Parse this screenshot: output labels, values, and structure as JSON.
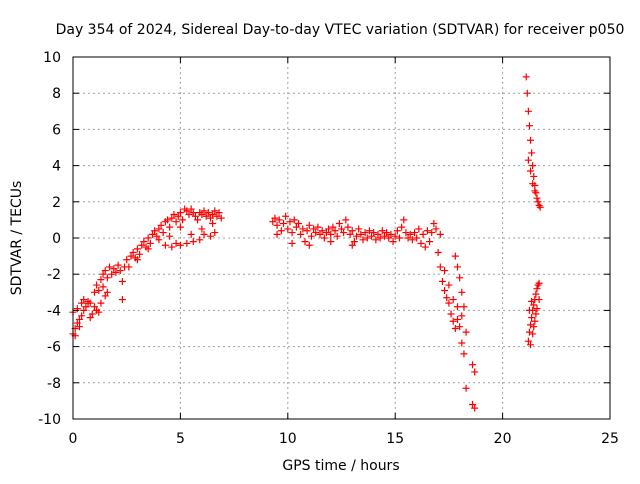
{
  "chart_data": {
    "type": "scatter",
    "title": "Day 354 of 2024, Sidereal Day-to-day VTEC variation (SDTVAR) for receiver p050",
    "xlabel": "GPS time / hours",
    "ylabel": "SDTVAR / TECUs",
    "xlim": [
      0,
      25
    ],
    "ylim": [
      -10,
      10
    ],
    "xticks": [
      "0",
      "5",
      "10",
      "15",
      "20",
      "25"
    ],
    "yticks": [
      "-10",
      "-8",
      "-6",
      "-4",
      "-2",
      "0",
      "2",
      "4",
      "6",
      "8",
      "10"
    ],
    "grid": true,
    "marker": "+",
    "color": "#ff0000",
    "series": [
      {
        "name": "p050",
        "points": [
          [
            0.0,
            -5.3
          ],
          [
            0.1,
            -5.0
          ],
          [
            0.2,
            -4.7
          ],
          [
            0.3,
            -4.5
          ],
          [
            0.4,
            -4.3
          ],
          [
            0.5,
            -4.0
          ],
          [
            0.6,
            -3.8
          ],
          [
            0.7,
            -3.6
          ],
          [
            0.0,
            -4.1
          ],
          [
            0.2,
            -3.9
          ],
          [
            0.4,
            -3.6
          ],
          [
            0.5,
            -3.4
          ],
          [
            0.7,
            -3.5
          ],
          [
            0.8,
            -3.6
          ],
          [
            0.1,
            -5.4
          ],
          [
            0.3,
            -4.9
          ],
          [
            0.8,
            -4.4
          ],
          [
            0.9,
            -4.2
          ],
          [
            1.0,
            -3.8
          ],
          [
            1.0,
            -3.0
          ],
          [
            1.1,
            -2.6
          ],
          [
            1.2,
            -2.9
          ],
          [
            1.3,
            -2.3
          ],
          [
            1.4,
            -2.0
          ],
          [
            1.5,
            -1.8
          ],
          [
            1.6,
            -2.2
          ],
          [
            1.7,
            -1.6
          ],
          [
            1.5,
            -3.2
          ],
          [
            1.3,
            -3.6
          ],
          [
            1.2,
            -4.1
          ],
          [
            1.1,
            -4.0
          ],
          [
            1.4,
            -2.7
          ],
          [
            1.6,
            -3.0
          ],
          [
            1.8,
            -2.0
          ],
          [
            1.9,
            -1.7
          ],
          [
            2.0,
            -1.9
          ],
          [
            2.1,
            -1.5
          ],
          [
            2.2,
            -1.8
          ],
          [
            2.3,
            -2.4
          ],
          [
            2.3,
            -3.4
          ],
          [
            2.4,
            -1.6
          ],
          [
            2.5,
            -1.2
          ],
          [
            2.6,
            -1.6
          ],
          [
            2.7,
            -1.0
          ],
          [
            2.8,
            -0.8
          ],
          [
            2.9,
            -1.1
          ],
          [
            3.0,
            -0.6
          ],
          [
            3.1,
            -0.9
          ],
          [
            3.2,
            -0.4
          ],
          [
            3.3,
            -0.2
          ],
          [
            3.4,
            -0.5
          ],
          [
            3.5,
            0.0
          ],
          [
            3.6,
            -0.3
          ],
          [
            3.7,
            0.2
          ],
          [
            3.8,
            0.4
          ],
          [
            3.9,
            0.1
          ],
          [
            4.0,
            0.5
          ],
          [
            4.1,
            0.7
          ],
          [
            4.2,
            0.3
          ],
          [
            4.3,
            0.9
          ],
          [
            4.4,
            1.0
          ],
          [
            4.5,
            0.6
          ],
          [
            4.6,
            1.1
          ],
          [
            4.7,
            1.3
          ],
          [
            4.8,
            0.9
          ],
          [
            4.9,
            1.2
          ],
          [
            5.0,
            1.4
          ],
          [
            5.1,
            1.0
          ],
          [
            5.2,
            1.6
          ],
          [
            5.3,
            1.5
          ],
          [
            5.4,
            1.3
          ],
          [
            5.5,
            1.6
          ],
          [
            5.6,
            1.4
          ],
          [
            5.7,
            1.2
          ],
          [
            5.8,
            1.0
          ],
          [
            5.9,
            1.4
          ],
          [
            6.0,
            1.3
          ],
          [
            6.1,
            1.5
          ],
          [
            6.2,
            1.2
          ],
          [
            6.3,
            1.4
          ],
          [
            6.4,
            1.1
          ],
          [
            6.5,
            1.3
          ],
          [
            6.6,
            1.5
          ],
          [
            6.7,
            1.2
          ],
          [
            6.8,
            1.4
          ],
          [
            6.9,
            1.1
          ],
          [
            3.0,
            -1.2
          ],
          [
            3.5,
            -0.6
          ],
          [
            4.0,
            -0.1
          ],
          [
            4.3,
            -0.4
          ],
          [
            4.6,
            -0.5
          ],
          [
            4.8,
            -0.3
          ],
          [
            5.0,
            -0.4
          ],
          [
            5.3,
            -0.3
          ],
          [
            5.6,
            -0.2
          ],
          [
            5.9,
            -0.1
          ],
          [
            6.1,
            0.2
          ],
          [
            6.4,
            0.1
          ],
          [
            6.6,
            0.3
          ],
          [
            4.5,
            0.1
          ],
          [
            5.0,
            0.6
          ],
          [
            5.5,
            0.2
          ],
          [
            6.0,
            0.5
          ],
          [
            6.5,
            0.8
          ],
          [
            9.3,
            0.9
          ],
          [
            9.4,
            1.1
          ],
          [
            9.5,
            0.7
          ],
          [
            9.6,
            1.0
          ],
          [
            9.7,
            0.4
          ],
          [
            9.8,
            0.8
          ],
          [
            9.9,
            1.2
          ],
          [
            10.0,
            0.5
          ],
          [
            10.1,
            0.9
          ],
          [
            10.2,
            0.3
          ],
          [
            10.3,
            1.0
          ],
          [
            10.4,
            0.6
          ],
          [
            10.5,
            0.8
          ],
          [
            10.6,
            0.2
          ],
          [
            10.7,
            0.5
          ],
          [
            10.8,
            -0.2
          ],
          [
            10.9,
            0.4
          ],
          [
            11.0,
            0.7
          ],
          [
            11.1,
            0.1
          ],
          [
            11.2,
            0.5
          ],
          [
            11.3,
            0.3
          ],
          [
            11.4,
            0.6
          ],
          [
            11.5,
            0.2
          ],
          [
            11.6,
            0.4
          ],
          [
            11.7,
            0.0
          ],
          [
            11.8,
            0.3
          ],
          [
            11.9,
            0.5
          ],
          [
            12.0,
            0.2
          ],
          [
            12.1,
            0.6
          ],
          [
            12.2,
            0.4
          ],
          [
            12.3,
            0.1
          ],
          [
            12.4,
            0.8
          ],
          [
            12.5,
            0.5
          ],
          [
            12.6,
            0.3
          ],
          [
            12.7,
            1.0
          ],
          [
            12.8,
            0.6
          ],
          [
            12.9,
            0.2
          ],
          [
            13.0,
            0.4
          ],
          [
            13.1,
            -0.2
          ],
          [
            13.2,
            0.1
          ],
          [
            13.3,
            0.5
          ],
          [
            13.4,
            0.2
          ],
          [
            13.5,
            -0.1
          ],
          [
            13.6,
            0.3
          ],
          [
            13.7,
            0.0
          ],
          [
            13.8,
            0.4
          ],
          [
            13.9,
            0.1
          ],
          [
            14.0,
            0.3
          ],
          [
            14.1,
            -0.1
          ],
          [
            14.2,
            0.2
          ],
          [
            14.3,
            0.0
          ],
          [
            14.4,
            0.4
          ],
          [
            14.5,
            0.1
          ],
          [
            14.6,
            0.3
          ],
          [
            14.7,
            0.0
          ],
          [
            14.8,
            0.2
          ],
          [
            14.9,
            -0.2
          ],
          [
            15.0,
            0.1
          ],
          [
            15.1,
            0.4
          ],
          [
            15.2,
            0.0
          ],
          [
            15.3,
            0.6
          ],
          [
            15.4,
            1.0
          ],
          [
            15.5,
            0.3
          ],
          [
            15.6,
            0.0
          ],
          [
            15.7,
            0.2
          ],
          [
            15.8,
            -0.1
          ],
          [
            15.9,
            0.3
          ],
          [
            16.0,
            0.0
          ],
          [
            16.1,
            0.5
          ],
          [
            16.2,
            -0.3
          ],
          [
            16.3,
            0.2
          ],
          [
            16.4,
            -0.5
          ],
          [
            16.5,
            0.4
          ],
          [
            16.6,
            -0.2
          ],
          [
            16.7,
            0.3
          ],
          [
            16.8,
            0.8
          ],
          [
            16.9,
            0.5
          ],
          [
            17.0,
            -0.8
          ],
          [
            17.1,
            -1.6
          ],
          [
            17.1,
            0.2
          ],
          [
            17.2,
            -2.4
          ],
          [
            17.3,
            -2.9
          ],
          [
            17.4,
            -3.3
          ],
          [
            17.5,
            -3.6
          ],
          [
            17.6,
            -4.2
          ],
          [
            17.7,
            -4.6
          ],
          [
            17.8,
            -5.0
          ],
          [
            17.9,
            -4.5
          ],
          [
            17.3,
            -1.8
          ],
          [
            17.5,
            -2.6
          ],
          [
            17.7,
            -3.4
          ],
          [
            17.9,
            -3.8
          ],
          [
            18.0,
            -4.9
          ],
          [
            18.1,
            -5.8
          ],
          [
            18.2,
            -6.4
          ],
          [
            18.1,
            -4.3
          ],
          [
            17.8,
            -1.0
          ],
          [
            17.9,
            -1.6
          ],
          [
            18.0,
            -2.2
          ],
          [
            18.1,
            -3.0
          ],
          [
            18.2,
            -3.8
          ],
          [
            18.3,
            -5.2
          ],
          [
            18.3,
            -8.3
          ],
          [
            18.6,
            -7.0
          ],
          [
            18.7,
            -7.4
          ],
          [
            18.6,
            -9.2
          ],
          [
            18.7,
            -9.4
          ],
          [
            9.5,
            0.2
          ],
          [
            10.2,
            -0.3
          ],
          [
            11.0,
            -0.4
          ],
          [
            12.0,
            -0.2
          ],
          [
            13.0,
            -0.4
          ],
          [
            21.1,
            8.9
          ],
          [
            21.15,
            8.0
          ],
          [
            21.2,
            7.0
          ],
          [
            21.25,
            6.2
          ],
          [
            21.3,
            5.4
          ],
          [
            21.35,
            4.7
          ],
          [
            21.4,
            4.0
          ],
          [
            21.45,
            3.4
          ],
          [
            21.5,
            2.9
          ],
          [
            21.55,
            2.5
          ],
          [
            21.6,
            2.2
          ],
          [
            21.65,
            2.0
          ],
          [
            21.7,
            1.8
          ],
          [
            21.75,
            1.7
          ],
          [
            21.2,
            4.3
          ],
          [
            21.3,
            3.7
          ],
          [
            21.4,
            3.0
          ],
          [
            21.5,
            2.6
          ],
          [
            21.2,
            -5.7
          ],
          [
            21.25,
            -5.2
          ],
          [
            21.3,
            -4.8
          ],
          [
            21.35,
            -4.4
          ],
          [
            21.4,
            -4.0
          ],
          [
            21.45,
            -3.7
          ],
          [
            21.5,
            -3.4
          ],
          [
            21.55,
            -3.1
          ],
          [
            21.6,
            -2.8
          ],
          [
            21.65,
            -2.6
          ],
          [
            21.7,
            -2.5
          ],
          [
            21.3,
            -5.9
          ],
          [
            21.4,
            -5.3
          ],
          [
            21.5,
            -4.6
          ],
          [
            21.6,
            -3.9
          ],
          [
            21.7,
            -3.4
          ],
          [
            21.25,
            -4.0
          ],
          [
            21.35,
            -3.5
          ],
          [
            21.45,
            -4.9
          ],
          [
            21.55,
            -4.2
          ]
        ]
      }
    ]
  }
}
